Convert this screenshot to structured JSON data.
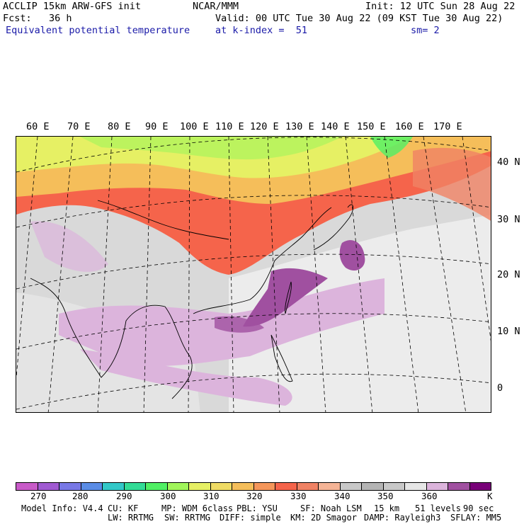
{
  "header": {
    "model": "ACCLIP 15km ARW-GFS init",
    "fcst": "Fcst:   36 h",
    "field": "Equivalent potential temperature",
    "org": "NCAR/MMM",
    "init": "Init: 12 UTC Sun 28 Aug 22",
    "valid": "Valid: 00 UTC Tue 30 Aug 22 (09 KST Tue 30 Aug 22)",
    "level": "at k-index =  51",
    "smooth": "sm= 2"
  },
  "map": {
    "lon_labels": [
      "60 E",
      "70 E",
      "80 E",
      "90 E",
      "100 E",
      "110 E",
      "120 E",
      "130 E",
      "140 E",
      "150 E",
      "160 E",
      "170 E"
    ],
    "lat_labels": [
      "40 N",
      "30 N",
      "20 N",
      "10 N",
      "0"
    ]
  },
  "colorbar": {
    "colors": [
      "#c85ac8",
      "#a05ad2",
      "#7878e6",
      "#5a8ce6",
      "#32c8c8",
      "#32dc96",
      "#50f064",
      "#a0f55a",
      "#e6f064",
      "#f0dc64",
      "#f5be5a",
      "#f5965a",
      "#f5644b",
      "#f08264",
      "#f5b496",
      "#c8c8c8",
      "#b4b4b4",
      "#c8c8c8",
      "#e6e6e6",
      "#dcb4dc",
      "#a050a0",
      "#780078"
    ],
    "labels": [
      "270",
      "280",
      "290",
      "300",
      "310",
      "320",
      "330",
      "340",
      "350",
      "360",
      "K"
    ]
  },
  "footer": {
    "line1_model": "Model Info: V4.4",
    "line1_cu": "CU: KF",
    "line1_mp": "MP: WDM 6class",
    "line1_pbl": "PBL: YSU",
    "line1_sf": "SF: Noah LSM",
    "line1_res": "15 km",
    "line1_levels": "51 levels",
    "line1_dt": "90 sec",
    "line2_lw": "LW: RRTMG",
    "line2_sw": "SW: RRTMG",
    "line2_diff": "DIFF: simple",
    "line2_km": "KM: 2D Smagor",
    "line2_damp": "DAMP: Rayleigh3",
    "line2_sflay": "SFLAY: MM5"
  }
}
